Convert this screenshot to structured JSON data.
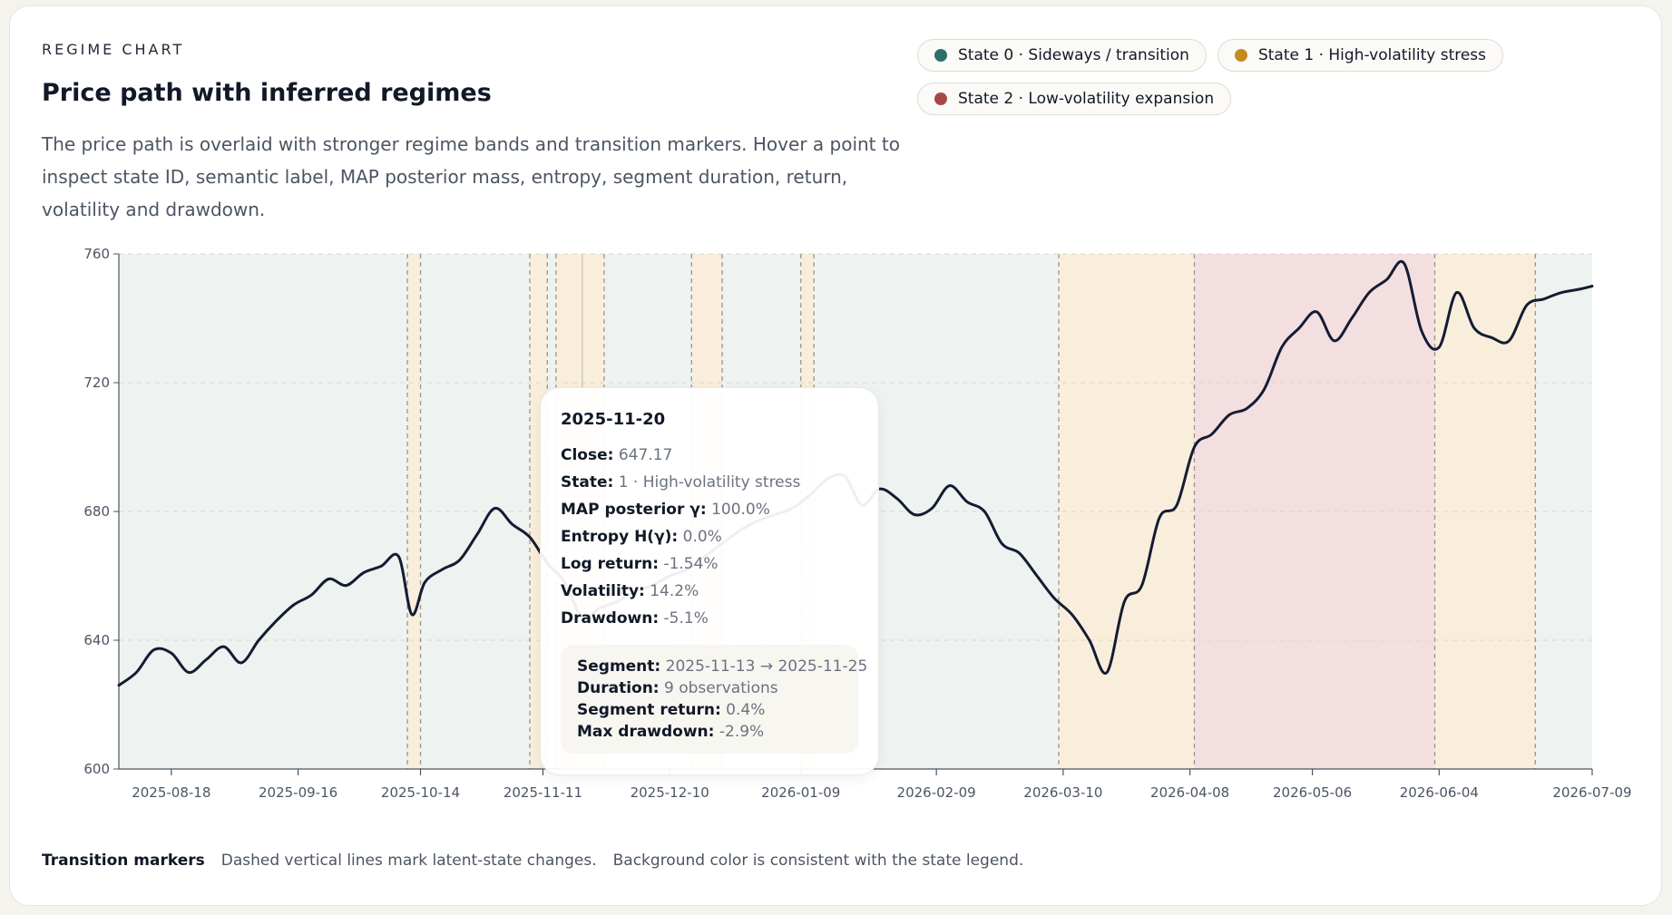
{
  "header": {
    "eyebrow": "REGIME CHART",
    "title": "Price path with inferred regimes",
    "description": "The price path is overlaid with stronger regime bands and transition markers. Hover a point to inspect state ID, semantic label, MAP posterior mass, entropy, segment duration, return, volatility and drawdown."
  },
  "legend": [
    {
      "label": "State 0 · Sideways / transition",
      "color": "#2f6f68"
    },
    {
      "label": "State 1 · High-volatility stress",
      "color": "#c58a22"
    },
    {
      "label": "State 2 · Low-volatility expansion",
      "color": "#a8474a"
    }
  ],
  "state_colors": {
    "0": "#eef3f1",
    "1": "#f9eedb",
    "2": "#f4dfe0"
  },
  "chart_data": {
    "type": "line",
    "x_start": "2025-08-06",
    "x_end": "2026-07-09",
    "ylim": [
      600,
      760
    ],
    "yticks": [
      600,
      640,
      680,
      720,
      760
    ],
    "xticks": [
      "2025-08-18",
      "2025-09-16",
      "2025-10-14",
      "2025-11-11",
      "2025-12-10",
      "2026-01-09",
      "2026-02-09",
      "2026-03-10",
      "2026-04-08",
      "2026-05-06",
      "2026-06-04",
      "2026-07-09"
    ],
    "grid": true,
    "regimes": [
      {
        "start": "2025-08-06",
        "end": "2025-10-11",
        "state": 0
      },
      {
        "start": "2025-10-11",
        "end": "2025-10-14",
        "state": 1
      },
      {
        "start": "2025-10-14",
        "end": "2025-11-08",
        "state": 0
      },
      {
        "start": "2025-11-08",
        "end": "2025-11-12",
        "state": 1
      },
      {
        "start": "2025-11-12",
        "end": "2025-11-14",
        "state": 0
      },
      {
        "start": "2025-11-14",
        "end": "2025-11-25",
        "state": 1
      },
      {
        "start": "2025-11-25",
        "end": "2025-12-15",
        "state": 0
      },
      {
        "start": "2025-12-15",
        "end": "2025-12-22",
        "state": 1
      },
      {
        "start": "2025-12-22",
        "end": "2026-01-09",
        "state": 0
      },
      {
        "start": "2026-01-09",
        "end": "2026-01-12",
        "state": 1
      },
      {
        "start": "2026-01-12",
        "end": "2026-03-09",
        "state": 0
      },
      {
        "start": "2026-03-09",
        "end": "2026-04-09",
        "state": 1
      },
      {
        "start": "2026-04-09",
        "end": "2026-06-03",
        "state": 2
      },
      {
        "start": "2026-06-03",
        "end": "2026-06-26",
        "state": 1
      },
      {
        "start": "2026-06-26",
        "end": "2026-07-09",
        "state": 0
      }
    ],
    "series": [
      {
        "x": [
          "2025-08-06",
          "2025-08-10",
          "2025-08-14",
          "2025-08-18",
          "2025-08-22",
          "2025-08-26",
          "2025-08-30",
          "2025-09-03",
          "2025-09-07",
          "2025-09-11",
          "2025-09-15",
          "2025-09-19",
          "2025-09-23",
          "2025-09-27",
          "2025-10-01",
          "2025-10-05",
          "2025-10-09",
          "2025-10-12",
          "2025-10-15",
          "2025-10-19",
          "2025-10-23",
          "2025-10-27",
          "2025-10-31",
          "2025-11-04",
          "2025-11-08",
          "2025-11-12",
          "2025-11-16",
          "2025-11-20",
          "2025-11-24",
          "2025-11-28",
          "2025-12-02",
          "2025-12-06",
          "2025-12-10",
          "2025-12-14",
          "2025-12-18",
          "2025-12-22",
          "2025-12-26",
          "2025-12-30",
          "2026-01-03",
          "2026-01-07",
          "2026-01-11",
          "2026-01-15",
          "2026-01-19",
          "2026-01-23",
          "2026-01-27",
          "2026-01-31",
          "2026-02-04",
          "2026-02-08",
          "2026-02-12",
          "2026-02-16",
          "2026-02-20",
          "2026-02-24",
          "2026-02-28",
          "2026-03-04",
          "2026-03-08",
          "2026-03-12",
          "2026-03-16",
          "2026-03-20",
          "2026-03-24",
          "2026-03-28",
          "2026-04-01",
          "2026-04-05",
          "2026-04-09",
          "2026-04-13",
          "2026-04-17",
          "2026-04-21",
          "2026-04-25",
          "2026-04-29",
          "2026-05-03",
          "2026-05-07",
          "2026-05-11",
          "2026-05-15",
          "2026-05-19",
          "2026-05-23",
          "2026-05-27",
          "2026-05-31",
          "2026-06-04",
          "2026-06-08",
          "2026-06-12",
          "2026-06-16",
          "2026-06-20",
          "2026-06-24",
          "2026-06-28",
          "2026-07-02",
          "2026-07-06",
          "2026-07-09"
        ],
        "y": [
          626,
          630,
          637,
          636,
          630,
          634,
          638,
          633,
          640,
          646,
          651,
          654,
          659,
          657,
          661,
          663,
          666,
          648,
          658,
          662,
          665,
          673,
          681,
          676,
          672,
          664,
          658,
          647,
          650,
          652,
          655,
          657,
          660,
          662,
          666,
          670,
          674,
          677,
          679,
          681,
          685,
          690,
          691,
          682,
          687,
          684,
          679,
          681,
          688,
          683,
          680,
          670,
          667,
          660,
          653,
          648,
          640,
          630,
          652,
          657,
          678,
          682,
          700,
          704,
          710,
          712,
          718,
          731,
          737,
          742,
          733,
          740,
          748,
          752,
          757,
          736,
          731,
          748,
          737,
          734,
          733,
          744,
          746,
          748,
          749,
          750
        ]
      }
    ]
  },
  "tooltip": {
    "date": "2025-11-20",
    "close_label": "Close:",
    "close_value": "647.17",
    "state_label": "State:",
    "state_value": "1 · High-volatility stress",
    "map_label": "MAP posterior γ:",
    "map_value": "100.0%",
    "entropy_label": "Entropy H(γ):",
    "entropy_value": "0.0%",
    "logret_label": "Log return:",
    "logret_value": "-1.54%",
    "vol_label": "Volatility:",
    "vol_value": "14.2%",
    "dd_label": "Drawdown:",
    "dd_value": "-5.1%",
    "segment_label": "Segment:",
    "segment_value": "2025-11-13 → 2025-11-25",
    "duration_label": "Duration:",
    "duration_value": "9 observations",
    "segret_label": "Segment return:",
    "segret_value": "0.4%",
    "maxdd_label": "Max drawdown:",
    "maxdd_value": "-2.9%"
  },
  "footer": {
    "title": "Transition markers",
    "text1": "Dashed vertical lines mark latent-state changes.",
    "text2": "Background color is consistent with the state legend."
  }
}
